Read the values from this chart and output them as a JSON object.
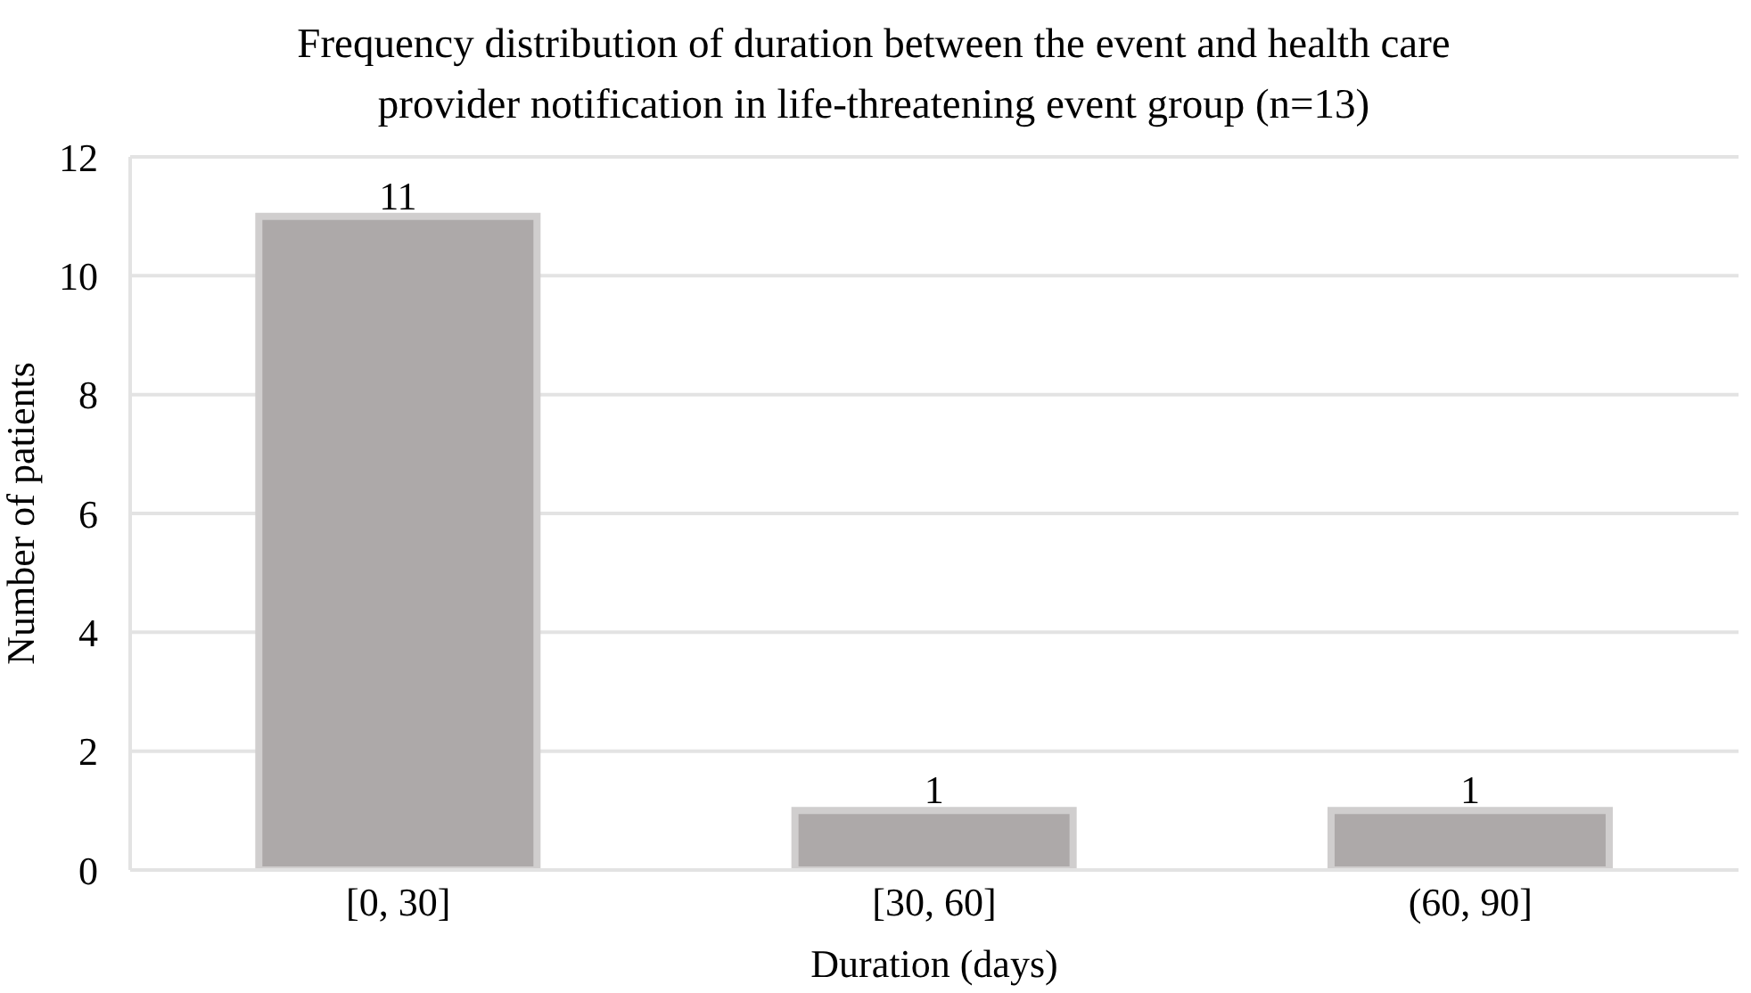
{
  "chart_data": {
    "type": "bar",
    "title": "Frequency distribution of duration between the event and health care provider notification in life-threatening event group (n=13)",
    "xlabel": "Duration (days)",
    "ylabel": "Number of patients",
    "categories": [
      "[0, 30]",
      "[30, 60]",
      "(60, 90]"
    ],
    "values": [
      11,
      1,
      1
    ],
    "color": "#ada9a9",
    "ylim": [
      0,
      12
    ],
    "yticks": [
      0,
      2,
      4,
      6,
      8,
      10,
      12
    ],
    "grid": "y",
    "data_labels": true
  }
}
